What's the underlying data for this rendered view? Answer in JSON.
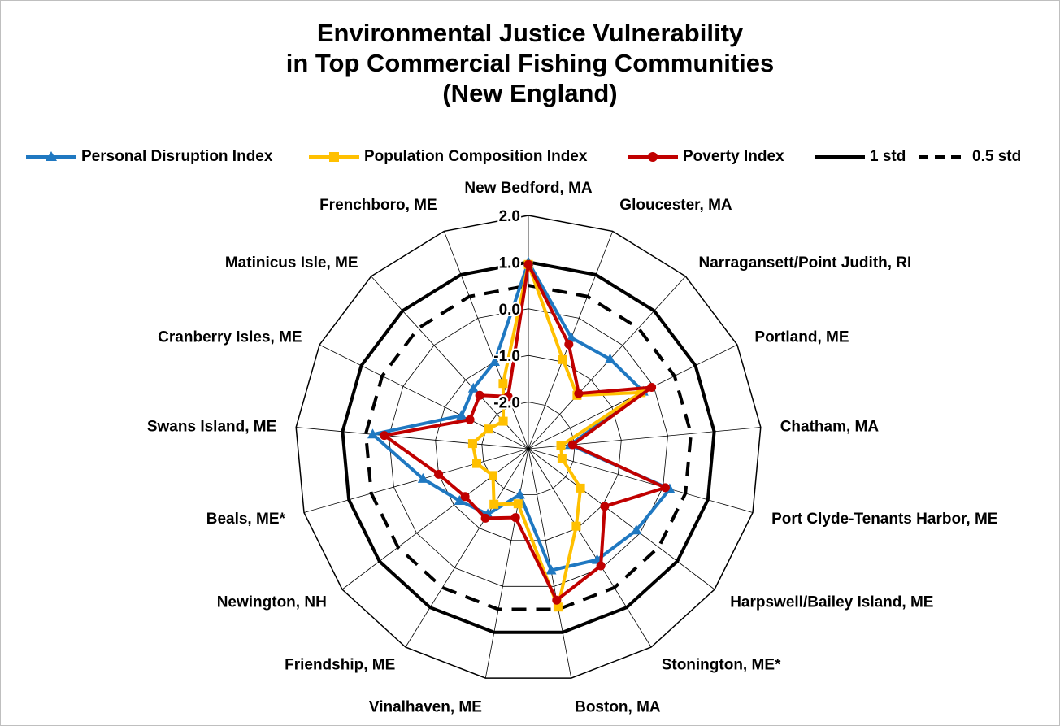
{
  "title": {
    "line1": "Environmental Justice Vulnerability",
    "line2": "in Top Commercial Fishing Communities",
    "line3": "(New England)"
  },
  "legend": {
    "items": [
      {
        "label": "Personal Disruption Index",
        "color": "#1f78c1",
        "marker": "triangle",
        "dash": "solid"
      },
      {
        "label": "Population Composition Index",
        "color": "#ffc000",
        "marker": "square",
        "dash": "solid"
      },
      {
        "label": "Poverty Index",
        "color": "#c00000",
        "marker": "circle",
        "dash": "solid"
      },
      {
        "label": "1 std",
        "color": "#000000",
        "marker": "none",
        "dash": "solid"
      },
      {
        "label": "0.5 std",
        "color": "#000000",
        "marker": "none",
        "dash": "dashed"
      }
    ]
  },
  "chart_data": {
    "type": "radar",
    "title": "Environmental Justice Vulnerability in Top Commercial Fishing Communities (New England)",
    "categories": [
      "New Bedford, MA",
      "Gloucester, MA",
      "Narragansett/Point Judith, RI",
      "Portland, ME",
      "Chatham, MA",
      "Port Clyde-Tenants Harbor, ME",
      "Harpswell/Bailey Island, ME",
      "Stonington, ME*",
      "Boston, MA",
      "Vinalhaven, ME",
      "Friendship, ME",
      "Newington, NH",
      "Beals, ME*",
      "Swans Island, ME",
      "Cranberry Isles, ME",
      "Matinicus Isle, ME",
      "Frenchboro, ME"
    ],
    "rlim": [
      -3,
      2
    ],
    "ticks": [
      2.0,
      1.0,
      0.0,
      -1.0,
      -2.0
    ],
    "tick_labels": [
      "2.0",
      "1.0",
      "0.0",
      "-1.0",
      "-2.0"
    ],
    "series": [
      {
        "name": "Personal Disruption Index",
        "color": "#1f78c1",
        "marker": "triangle",
        "values": [
          1.0,
          -0.45,
          -0.4,
          -0.25,
          -2.1,
          0.15,
          -0.1,
          -0.2,
          -0.35,
          -2.0,
          -1.35,
          -1.15,
          -0.65,
          0.35,
          -1.4,
          -1.25,
          -1.0
        ]
      },
      {
        "name": "Population Composition Index",
        "color": "#ffc000",
        "marker": "square",
        "values": [
          0.95,
          -0.95,
          -1.45,
          -0.3,
          -2.3,
          -2.25,
          -1.6,
          -1.05,
          0.45,
          -1.8,
          -1.6,
          -2.05,
          -1.85,
          -1.8,
          -2.05,
          -2.2,
          -1.5
        ]
      },
      {
        "name": "Poverty Index",
        "color": "#c00000",
        "marker": "circle",
        "values": [
          0.95,
          -0.6,
          -1.4,
          -0.05,
          -2.05,
          0.05,
          -0.95,
          -0.05,
          0.3,
          -1.5,
          -1.25,
          -1.3,
          -1.0,
          0.1,
          -1.6,
          -1.45,
          -1.8
        ]
      },
      {
        "name": "1 std",
        "color": "#000000",
        "style": "solid",
        "values": [
          1.0,
          1.0,
          1.0,
          1.0,
          1.0,
          1.0,
          1.0,
          1.0,
          1.0,
          1.0,
          1.0,
          1.0,
          1.0,
          1.0,
          1.0,
          1.0,
          1.0
        ]
      },
      {
        "name": "0.5 std",
        "color": "#000000",
        "style": "dashed",
        "values": [
          0.5,
          0.5,
          0.5,
          0.5,
          0.5,
          0.5,
          0.5,
          0.5,
          0.5,
          0.5,
          0.5,
          0.5,
          0.5,
          0.5,
          0.5,
          0.5,
          0.5
        ]
      }
    ],
    "grid": true,
    "legend_position": "top"
  }
}
